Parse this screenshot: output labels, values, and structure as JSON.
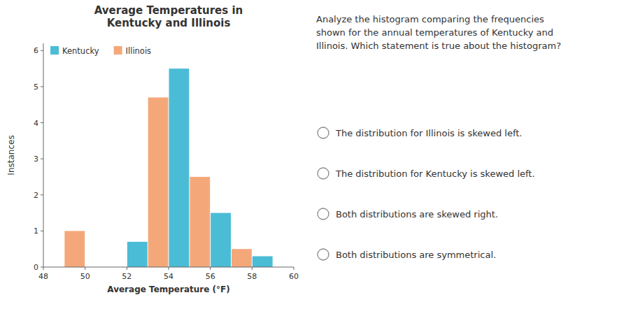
{
  "chart_data": {
    "type": "histogram",
    "title": "Average Temperatures in\nKentucky and Illinois",
    "x_label": "Average Temperature (°F)",
    "y_label": "Instances",
    "bins": [
      48,
      50,
      52,
      54,
      56,
      58,
      60
    ],
    "series": [
      {
        "name": "Kentucky",
        "color": "#4BBCD6",
        "values": [
          0,
          0,
          0.7,
          5.5,
          1.5,
          0.3
        ]
      },
      {
        "name": "Illinois",
        "color": "#F4A87A",
        "values": [
          1,
          0,
          4.7,
          2.5,
          0.5,
          0
        ]
      }
    ],
    "xlim": [
      48,
      60
    ],
    "ylim": [
      0,
      6.2
    ],
    "xticks": [
      48,
      50,
      52,
      54,
      56,
      58,
      60
    ],
    "yticks": [
      0,
      1,
      2,
      3,
      4,
      5,
      6
    ],
    "grid": false,
    "legend": "upper left",
    "annotations": [
      "Analyze the histogram comparing the frequencies\nshown for the annual temperatures of Kentucky and\nIllinois. Which statement is true about the histogram?",
      "The distribution for Illinois is skewed left.",
      "The distribution for Kentucky is skewed left.",
      "Both distributions are skewed right.",
      "Both distributions are symmetrical."
    ]
  }
}
